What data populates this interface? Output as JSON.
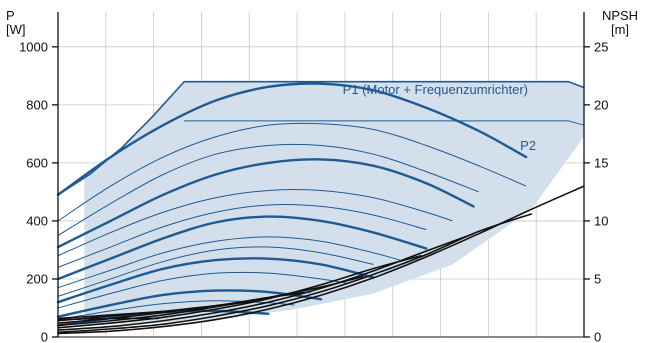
{
  "chart_data": {
    "type": "line",
    "left_axis": {
      "label_line1": "P",
      "label_line2": "[W]",
      "ticks": [
        0,
        200,
        400,
        600,
        800,
        1000
      ],
      "range": [
        0,
        1120
      ]
    },
    "right_axis": {
      "label_line1": "NPSH",
      "label_line2": "[m]",
      "ticks": [
        0,
        5,
        10,
        15,
        20,
        25
      ],
      "range": [
        0,
        28
      ]
    },
    "x_axis": {
      "range": [
        0,
        1
      ],
      "tick_labels": []
    },
    "grid": true,
    "colors": {
      "power": "#1f5a93",
      "envelope_fill": "#d3e0ec",
      "npsh": "#111111",
      "grid": "#c8c8c8",
      "axis": "#111111"
    },
    "labels": {
      "p1": "P1 (Motor + Frequenzumrichter)",
      "p2": "P2"
    },
    "series": [
      {
        "name": "P1 (Motor + Frequenzumrichter)",
        "role": "envelope-max",
        "x": [
          0.0,
          0.06,
          0.12,
          0.18,
          0.24,
          0.5,
          0.7,
          0.85,
          0.97,
          1.0
        ],
        "values": [
          490,
          560,
          650,
          760,
          880,
          880,
          880,
          880,
          880,
          860
        ]
      },
      {
        "name": "P2",
        "role": "envelope-p2",
        "x": [
          0.24,
          0.5,
          0.75,
          0.97,
          1.0
        ],
        "values": [
          745,
          745,
          745,
          745,
          730
        ]
      },
      {
        "role": "envelope-lower",
        "x": [
          0.0,
          0.15,
          0.3,
          0.45,
          0.6,
          0.75,
          0.9,
          1.0
        ],
        "values": [
          40,
          45,
          60,
          95,
          150,
          250,
          440,
          690
        ]
      },
      {
        "role": "power",
        "weight": "thick",
        "x": [
          0.0,
          0.1,
          0.2,
          0.3,
          0.4,
          0.5,
          0.6,
          0.7,
          0.8,
          0.89
        ],
        "values": [
          490,
          620,
          730,
          815,
          862,
          873,
          850,
          790,
          710,
          620
        ]
      },
      {
        "role": "power",
        "weight": "thick",
        "x": [
          0.0,
          0.1,
          0.2,
          0.3,
          0.4,
          0.5,
          0.6,
          0.7,
          0.79
        ],
        "values": [
          310,
          400,
          490,
          560,
          600,
          612,
          590,
          530,
          450
        ]
      },
      {
        "role": "power",
        "weight": "thick",
        "x": [
          0.0,
          0.1,
          0.2,
          0.3,
          0.4,
          0.5,
          0.6,
          0.7
        ],
        "values": [
          200,
          270,
          340,
          395,
          415,
          400,
          360,
          305
        ]
      },
      {
        "role": "power",
        "weight": "thick",
        "x": [
          0.0,
          0.1,
          0.2,
          0.3,
          0.4,
          0.5,
          0.6
        ],
        "values": [
          120,
          180,
          235,
          265,
          270,
          250,
          205
        ]
      },
      {
        "role": "power",
        "weight": "thick",
        "x": [
          0.0,
          0.1,
          0.2,
          0.3,
          0.4,
          0.5
        ],
        "values": [
          70,
          110,
          145,
          160,
          155,
          130
        ]
      },
      {
        "role": "power",
        "weight": "thick",
        "x": [
          0.0,
          0.1,
          0.2,
          0.3,
          0.4
        ],
        "values": [
          40,
          65,
          85,
          90,
          80
        ]
      },
      {
        "role": "power",
        "weight": "thin",
        "x": [
          0.0,
          0.1,
          0.2,
          0.3,
          0.4,
          0.5,
          0.6,
          0.7,
          0.8,
          0.89
        ],
        "values": [
          400,
          520,
          620,
          690,
          730,
          735,
          715,
          660,
          590,
          520
        ]
      },
      {
        "role": "power",
        "weight": "thin",
        "x": [
          0.0,
          0.1,
          0.2,
          0.3,
          0.4,
          0.5,
          0.6,
          0.7,
          0.8
        ],
        "values": [
          350,
          460,
          560,
          630,
          660,
          660,
          630,
          570,
          500
        ]
      },
      {
        "role": "power",
        "weight": "thin",
        "x": [
          0.0,
          0.1,
          0.2,
          0.3,
          0.4,
          0.5,
          0.6,
          0.7,
          0.75
        ],
        "values": [
          280,
          360,
          430,
          480,
          505,
          505,
          480,
          430,
          400
        ]
      },
      {
        "role": "power",
        "weight": "thin",
        "x": [
          0.0,
          0.1,
          0.2,
          0.3,
          0.4,
          0.5,
          0.6,
          0.7
        ],
        "values": [
          240,
          310,
          380,
          430,
          455,
          450,
          420,
          370
        ]
      },
      {
        "role": "power",
        "weight": "thin",
        "x": [
          0.0,
          0.1,
          0.2,
          0.3,
          0.4,
          0.5,
          0.6,
          0.65
        ],
        "values": [
          170,
          230,
          290,
          330,
          345,
          330,
          290,
          265
        ]
      },
      {
        "role": "power",
        "weight": "thin",
        "x": [
          0.0,
          0.1,
          0.2,
          0.3,
          0.4,
          0.5,
          0.6
        ],
        "values": [
          140,
          200,
          260,
          300,
          310,
          290,
          250
        ]
      },
      {
        "role": "power",
        "weight": "thin",
        "x": [
          0.0,
          0.1,
          0.2,
          0.3,
          0.4,
          0.5,
          0.55
        ],
        "values": [
          100,
          150,
          195,
          220,
          220,
          200,
          185
        ]
      },
      {
        "role": "power",
        "weight": "thin",
        "x": [
          0.0,
          0.1,
          0.2,
          0.3,
          0.4,
          0.45
        ],
        "values": [
          60,
          90,
          115,
          125,
          118,
          110
        ]
      },
      {
        "role": "npsh",
        "x": [
          0.0,
          0.1,
          0.2,
          0.3,
          0.4,
          0.5,
          0.6,
          0.7,
          0.8,
          0.9,
          1.0
        ],
        "values": [
          0.3,
          0.5,
          0.9,
          1.5,
          2.4,
          3.6,
          5.1,
          6.9,
          8.9,
          11.0,
          13.0
        ]
      },
      {
        "role": "npsh",
        "x": [
          0.0,
          0.1,
          0.2,
          0.3,
          0.4,
          0.5,
          0.6,
          0.7,
          0.8,
          0.9
        ],
        "values": [
          0.4,
          0.7,
          1.1,
          1.8,
          2.7,
          3.9,
          5.4,
          7.1,
          9.1,
          10.6
        ]
      },
      {
        "role": "npsh",
        "x": [
          0.0,
          0.1,
          0.2,
          0.3,
          0.4,
          0.5,
          0.6,
          0.7,
          0.79
        ],
        "values": [
          0.6,
          0.9,
          1.4,
          2.1,
          3.0,
          4.2,
          5.7,
          7.4,
          8.9
        ]
      },
      {
        "role": "npsh",
        "x": [
          0.0,
          0.1,
          0.2,
          0.3,
          0.4,
          0.5,
          0.6,
          0.69
        ],
        "values": [
          0.8,
          1.2,
          1.7,
          2.4,
          3.3,
          4.5,
          5.9,
          7.0
        ]
      },
      {
        "role": "npsh",
        "x": [
          0.0,
          0.1,
          0.2,
          0.3,
          0.4,
          0.5,
          0.58
        ],
        "values": [
          1.0,
          1.4,
          1.9,
          2.6,
          3.4,
          4.3,
          5.2
        ]
      },
      {
        "role": "npsh",
        "x": [
          0.0,
          0.1,
          0.2,
          0.3,
          0.4,
          0.48
        ],
        "values": [
          1.2,
          1.6,
          2.1,
          2.7,
          3.4,
          3.9
        ]
      },
      {
        "role": "npsh",
        "x": [
          0.0,
          0.1,
          0.2,
          0.3,
          0.38
        ],
        "values": [
          1.4,
          1.8,
          2.2,
          2.7,
          3.1
        ]
      },
      {
        "role": "npsh",
        "x": [
          0.0,
          0.1,
          0.2,
          0.28
        ],
        "values": [
          1.6,
          1.9,
          2.2,
          2.5
        ]
      },
      {
        "role": "npsh",
        "x": [
          0.0,
          0.1,
          0.19
        ],
        "values": [
          1.5,
          1.6,
          1.6
        ]
      }
    ]
  }
}
